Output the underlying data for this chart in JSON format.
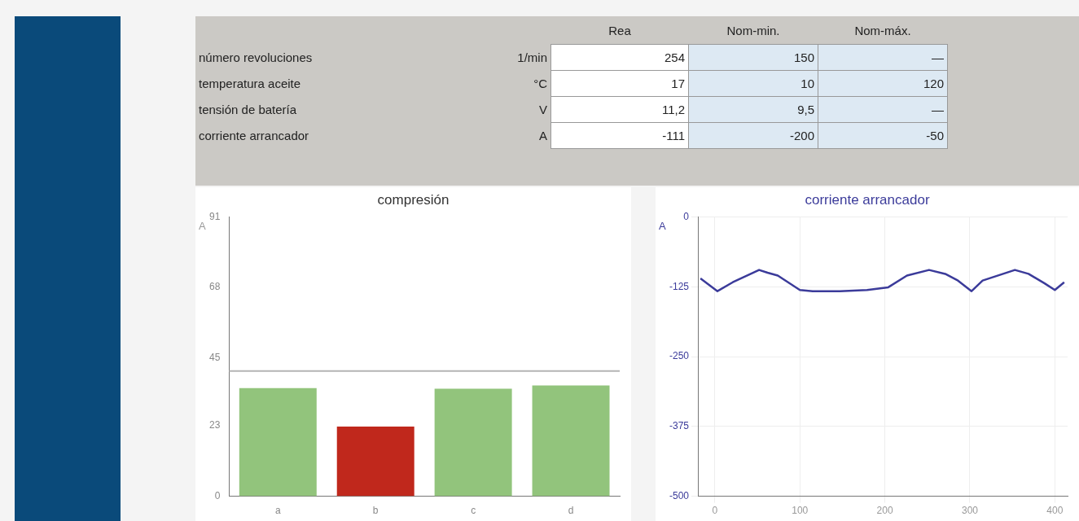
{
  "chart_data": [
    {
      "type": "other",
      "annotations": [
        "Rea",
        "Nom-min.",
        "Nom-máx.",
        "número revoluciones",
        "1/min",
        "254",
        "150",
        "—",
        "temperatura aceite",
        "°C",
        "17",
        "10",
        "120",
        "tensión de batería",
        "V",
        "11,2",
        "9,5",
        "—",
        "corriente arrancador",
        "A",
        "-111",
        "-200",
        "-50"
      ]
    },
    {
      "type": "bar",
      "title": "compresión",
      "ylabel": "A",
      "categories": [
        "a",
        "b",
        "c",
        "d"
      ],
      "values": [
        35.2,
        22.7,
        35,
        36.1
      ],
      "colors": [
        "#92c47c",
        "#c0281c",
        "#92c47c",
        "#92c47c"
      ],
      "ylim": [
        0,
        91
      ],
      "yticks": [
        0,
        23,
        45,
        68,
        91
      ],
      "ref_lines": [
        {
          "axis": "y",
          "value": 40.8,
          "color": "#b4b4b4"
        }
      ],
      "grid": false
    },
    {
      "type": "line",
      "title": "corriente arrancador",
      "ylabel": "A",
      "x": [
        -17,
        3,
        21,
        52,
        62,
        74,
        100,
        115,
        147,
        179,
        204,
        226,
        252,
        271,
        286,
        302,
        315,
        353,
        369,
        388,
        400,
        411
      ],
      "series": [
        {
          "color": "#3b3b9a",
          "values": [
            -110,
            -133,
            -117,
            -95,
            -100,
            -105,
            -131,
            -133,
            -133,
            -131,
            -126,
            -105,
            -95,
            -102,
            -114,
            -133,
            -114,
            -95,
            -102,
            -119,
            -131,
            -117
          ]
        }
      ],
      "xlim": [
        -20,
        415
      ],
      "xticks": [
        0,
        100,
        200,
        300,
        400
      ],
      "ylim": [
        -500,
        0
      ],
      "yticks": [
        -500,
        -375,
        -250,
        -125,
        0
      ],
      "grid": true,
      "marker": "none"
    }
  ]
}
